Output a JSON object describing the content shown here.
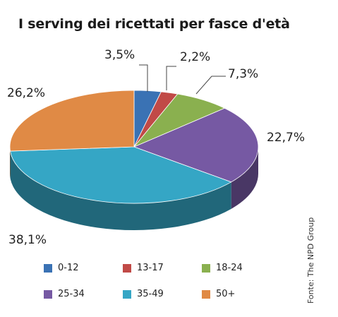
{
  "title": "I serving dei ricettati per fasce d'età",
  "source": "Fonte: The NPD Group",
  "chart_data": {
    "type": "pie",
    "title": "I serving dei ricettati per fasce d'età",
    "legend_position": "bottom",
    "categories": [
      "0-12",
      "13-17",
      "18-24",
      "25-34",
      "35-49",
      "50+"
    ],
    "values": [
      3.5,
      2.2,
      7.3,
      22.7,
      38.1,
      26.2
    ],
    "labels": [
      "3,5%",
      "2,2%",
      "7,3%",
      "22,7%",
      "38,1%",
      "26,2%"
    ],
    "colors": [
      "#3a72b4",
      "#c14a47",
      "#8ab04f",
      "#7659a3",
      "#35a6c5",
      "#e08a45"
    ]
  }
}
